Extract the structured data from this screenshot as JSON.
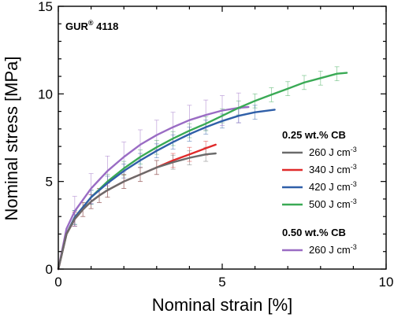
{
  "chart_data": {
    "type": "line",
    "xlabel": "Nominal strain [%]",
    "ylabel": "Nominal stress [MPa]",
    "xlim": [
      0,
      10
    ],
    "ylim": [
      0,
      15
    ],
    "x_ticks": [
      "0",
      "5",
      "10"
    ],
    "y_ticks": [
      "0",
      "5",
      "10",
      "15"
    ],
    "grid": false,
    "annotation": {
      "text": "GUR",
      "sup": "®",
      "suffix": " 4118"
    },
    "legend": {
      "placement": "right",
      "groups": [
        {
          "title": "0.25 wt.% CB",
          "entries": [
            {
              "series": 0,
              "label": "260 J cm",
              "sup": "-3"
            },
            {
              "series": 1,
              "label": "340 J cm",
              "sup": "-3"
            },
            {
              "series": 2,
              "label": "420 J cm",
              "sup": "-3"
            },
            {
              "series": 3,
              "label": "500 J cm",
              "sup": "-3"
            }
          ]
        },
        {
          "title": "0.50 wt.% CB",
          "entries": [
            {
              "series": 4,
              "label": "260 J cm",
              "sup": "-3"
            }
          ]
        }
      ]
    },
    "series": [
      {
        "color": "#6b6b6b",
        "x": [
          0,
          0.25,
          0.5,
          0.75,
          1.0,
          1.25,
          1.5,
          2.0,
          2.5,
          3.0,
          3.5,
          4.0,
          4.5,
          4.8
        ],
        "y": [
          0,
          2.0,
          2.85,
          3.4,
          3.85,
          4.2,
          4.5,
          5.0,
          5.4,
          5.8,
          6.1,
          6.35,
          6.55,
          6.6
        ]
      },
      {
        "color": "#e02a2a",
        "x": [
          0,
          0.25,
          0.5,
          0.75,
          1.0,
          1.25,
          1.5,
          2.0,
          2.5,
          3.0,
          3.5,
          4.0,
          4.5,
          4.8
        ],
        "y": [
          0,
          2.0,
          2.85,
          3.4,
          3.85,
          4.2,
          4.5,
          5.0,
          5.4,
          5.8,
          6.2,
          6.55,
          6.9,
          7.1
        ]
      },
      {
        "color": "#2f5fa8",
        "x": [
          0,
          0.25,
          0.5,
          1.0,
          1.5,
          2.0,
          2.5,
          3.0,
          3.5,
          4.0,
          4.5,
          5.0,
          5.5,
          6.0,
          6.6
        ],
        "y": [
          0,
          2.0,
          2.95,
          4.1,
          4.9,
          5.6,
          6.2,
          6.75,
          7.25,
          7.7,
          8.1,
          8.45,
          8.75,
          8.95,
          9.1
        ]
      },
      {
        "color": "#3aaa55",
        "x": [
          0,
          0.25,
          0.5,
          1.0,
          1.5,
          2.0,
          2.5,
          3.0,
          3.5,
          4.0,
          4.5,
          5.0,
          5.5,
          6.0,
          6.5,
          7.0,
          7.5,
          8.0,
          8.5,
          8.8
        ],
        "y": [
          0,
          2.0,
          2.95,
          4.1,
          5.0,
          5.75,
          6.4,
          6.95,
          7.45,
          7.9,
          8.3,
          8.75,
          9.2,
          9.6,
          9.95,
          10.3,
          10.65,
          10.9,
          11.15,
          11.2
        ]
      },
      {
        "color": "#9a6cc4",
        "x": [
          0,
          0.25,
          0.5,
          1.0,
          1.5,
          2.0,
          2.5,
          3.0,
          3.5,
          4.0,
          4.5,
          5.0,
          5.5,
          5.8
        ],
        "y": [
          0,
          2.3,
          3.3,
          4.6,
          5.6,
          6.4,
          7.1,
          7.65,
          8.1,
          8.5,
          8.8,
          9.05,
          9.2,
          9.25
        ]
      }
    ]
  }
}
